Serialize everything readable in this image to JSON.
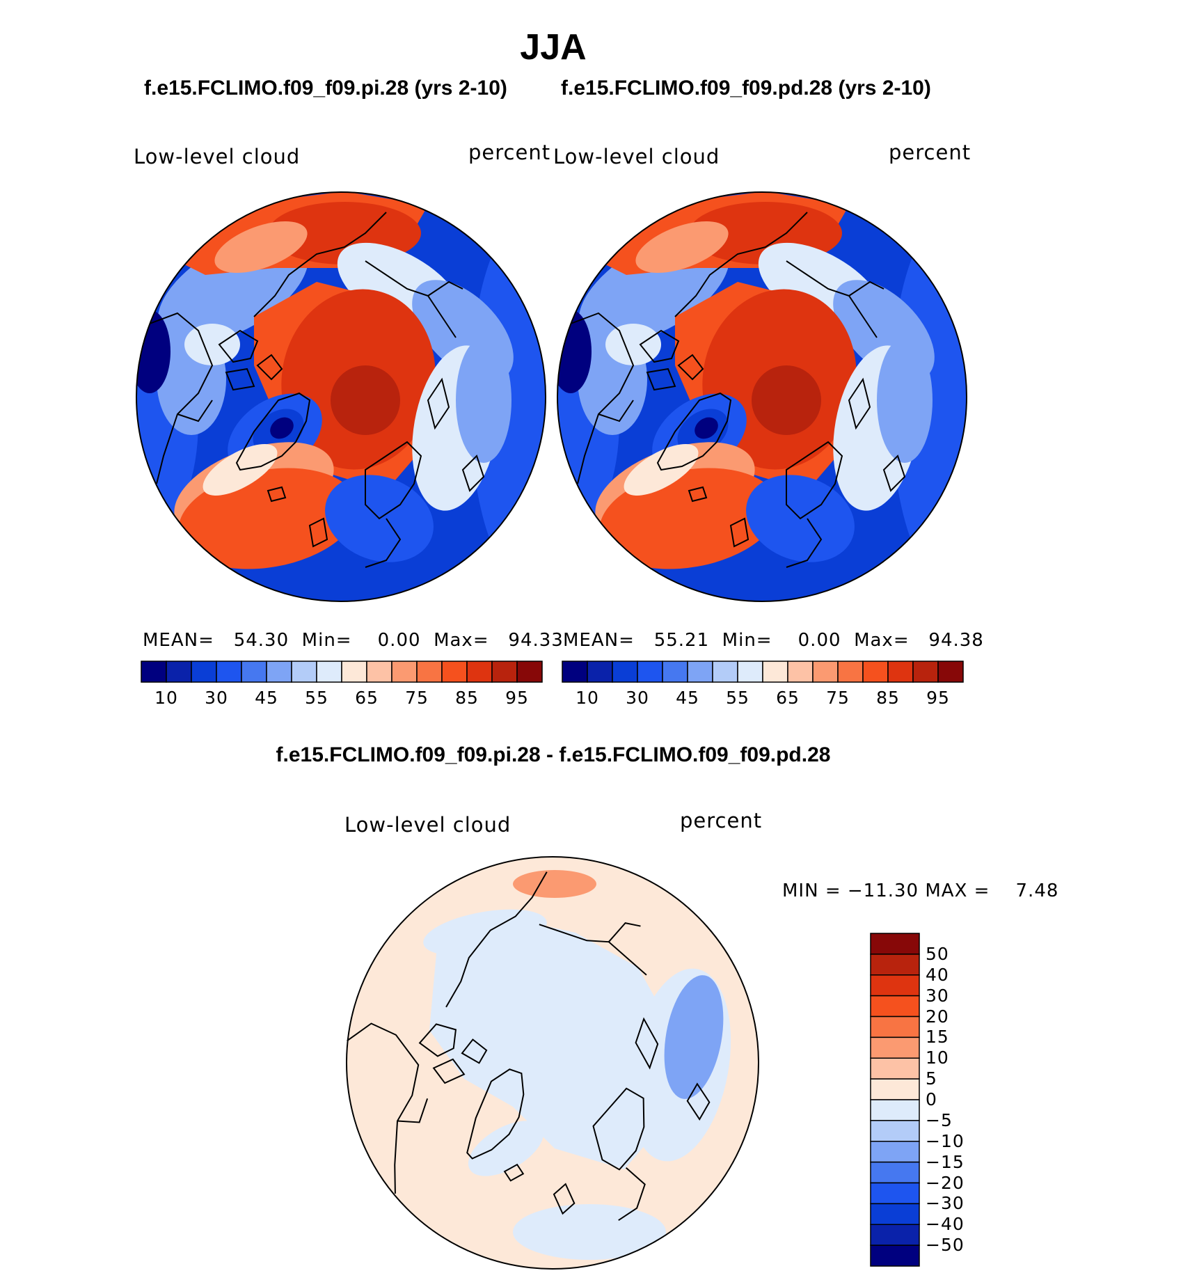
{
  "figure": {
    "season": "JJA",
    "variable": "Low-level cloud",
    "units": "percent"
  },
  "panels": [
    {
      "case": "f.e15.FCLIMO.f09_f09.pi.28 (yrs 2-10)",
      "variable": "Low-level cloud",
      "units": "percent",
      "stats": {
        "mean_label": "MEAN=",
        "mean": "54.30",
        "min_label": "Min=",
        "min": "0.00",
        "max_label": "Max=",
        "max": "94.33"
      }
    },
    {
      "case": "f.e15.FCLIMO.f09_f09.pd.28 (yrs 2-10)",
      "variable": "Low-level cloud",
      "units": "percent",
      "stats": {
        "mean_label": "MEAN=",
        "mean": "55.21",
        "min_label": "Min=",
        "min": "0.00",
        "max_label": "Max=",
        "max": "94.38"
      }
    }
  ],
  "difference": {
    "title": "f.e15.FCLIMO.f09_f09.pi.28 - f.e15.FCLIMO.f09_f09.pd.28",
    "variable": "Low-level cloud",
    "units": "percent",
    "stats": {
      "min_label": "MIN =",
      "min": "−11.30",
      "max_label": "MAX =",
      "max": "7.48"
    }
  },
  "colorbars": {
    "main": {
      "colors": [
        "#00007f",
        "#0a22aa",
        "#0a3ed6",
        "#1e55ef",
        "#4678f0",
        "#7ea4f5",
        "#b3ccf8",
        "#deebfb",
        "#fde8d8",
        "#fdc2a6",
        "#fb9a71",
        "#f87443",
        "#f5511e",
        "#de3410",
        "#b8230d",
        "#870808"
      ],
      "labels": [
        "10",
        "30",
        "45",
        "55",
        "65",
        "75",
        "85",
        "95"
      ],
      "label_positions": [
        1,
        3,
        5,
        7,
        9,
        11,
        13,
        15
      ]
    },
    "diff": {
      "colors_top_to_bottom": [
        "#870808",
        "#b8230d",
        "#de3410",
        "#f5511e",
        "#f87443",
        "#fb9a71",
        "#fdc2a6",
        "#fde8d8",
        "#deebfb",
        "#b3ccf8",
        "#7ea4f5",
        "#4678f0",
        "#1e55ef",
        "#0a3ed6",
        "#0a22aa",
        "#00007f"
      ],
      "labels": [
        "50",
        "40",
        "30",
        "20",
        "15",
        "10",
        "5",
        "0",
        "−5",
        "−10",
        "−15",
        "−20",
        "−30",
        "−40",
        "−50"
      ]
    }
  },
  "map_colors": {
    "deep_blue": "#00007f",
    "blue": "#0a3ed6",
    "mid_blue": "#1e55ef",
    "light_blue": "#7ea4f5",
    "pale_blue": "#deebfb",
    "cream": "#fde8d8",
    "salmon": "#fb9a71",
    "orange": "#f5511e",
    "red": "#de3410",
    "dark_red": "#b8230d"
  }
}
